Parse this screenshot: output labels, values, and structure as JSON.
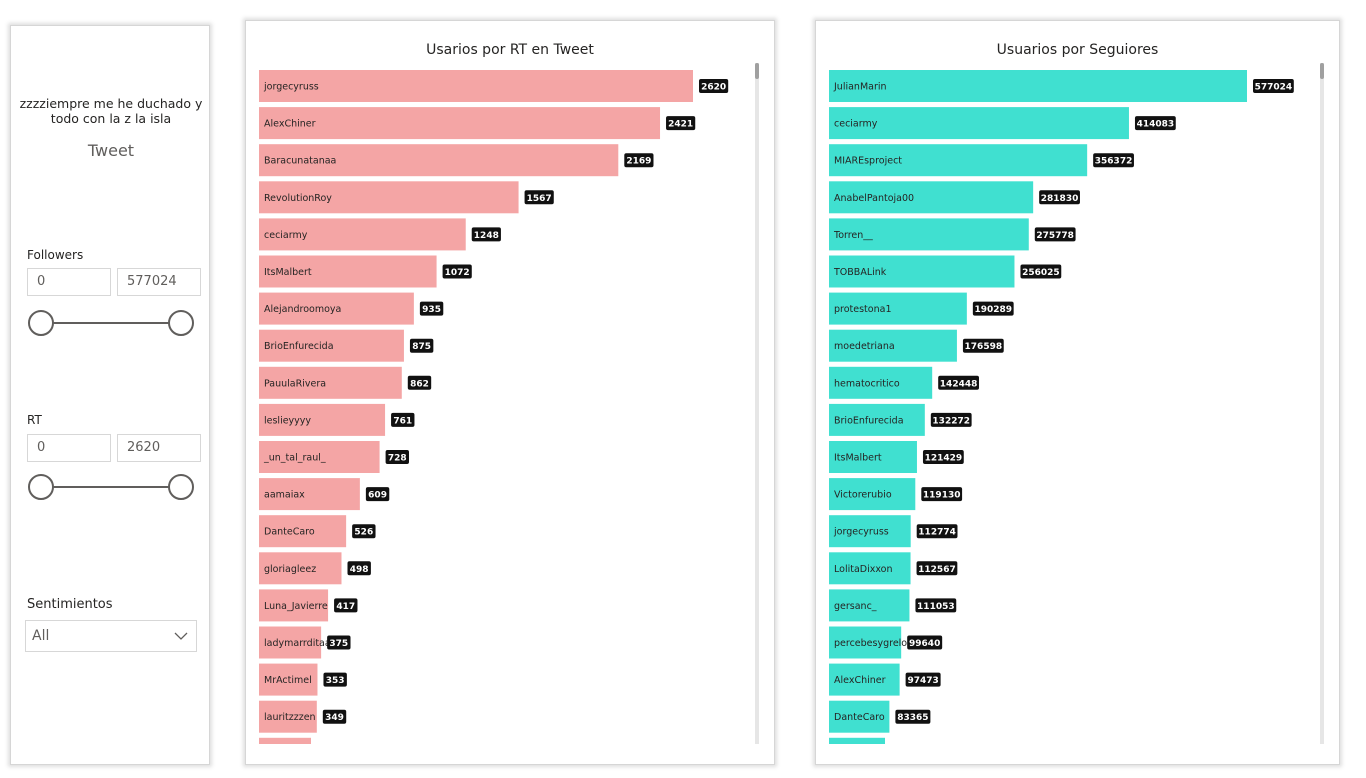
{
  "slicer_panel": {
    "tweet_text": "zzzziempre me he duchado y todo con la z la isla",
    "tweet_label": "Tweet",
    "followers": {
      "title": "Followers",
      "min": "0",
      "max": "577024",
      "range_fraction": [
        0,
        1
      ]
    },
    "rt": {
      "title": "RT",
      "min": "0",
      "max": "2620",
      "range_fraction": [
        0,
        1
      ]
    },
    "sentimientos": {
      "title": "Sentimientos",
      "selected": "All"
    }
  },
  "chart_data": [
    {
      "type": "bar",
      "orientation": "horizontal",
      "title": "Usarios por RT en Tweet",
      "color": "#F4A5A5",
      "xlim": [
        0,
        2620
      ],
      "categories": [
        "jorgecyruss",
        "AlexChiner",
        "Baracunatanaa",
        "RevolutionRoy",
        "ceciarmy",
        "ItsMalbert",
        "Alejandroomoya",
        "BrioEnfurecida",
        "PauulaRivera",
        "leslieyyyy",
        "_un_tal_raul_",
        "aamaiax",
        "DanteCaro",
        "gloriagleez",
        "Luna_Javierre",
        "ladymarrditaa",
        "MrActimel",
        "lauritzzzen"
      ],
      "values": [
        2620,
        2421,
        2169,
        1567,
        1248,
        1072,
        935,
        875,
        862,
        761,
        728,
        609,
        526,
        498,
        417,
        375,
        353,
        349
      ]
    },
    {
      "type": "bar",
      "orientation": "horizontal",
      "title": "Usuarios por Seguiores",
      "color": "#40E0D0",
      "xlim": [
        0,
        577024
      ],
      "categories": [
        "JulianMarin",
        "ceciarmy",
        "MIAREsproject",
        "AnabelPantoja00",
        "Torren__",
        "TOBBALink",
        "protestona1",
        "moedetriana",
        "hematocritico",
        "BrioEnfurecida",
        "ItsMalbert",
        "Victorerubio",
        "jorgecyruss",
        "LolitaDixxon",
        "gersanc_",
        "percebesygrelos",
        "AlexChiner",
        "DanteCaro"
      ],
      "values": [
        577024,
        414083,
        356372,
        281830,
        275778,
        256025,
        190289,
        176598,
        142448,
        132272,
        121429,
        119130,
        112774,
        112567,
        111053,
        99640,
        97473,
        83365
      ]
    }
  ]
}
